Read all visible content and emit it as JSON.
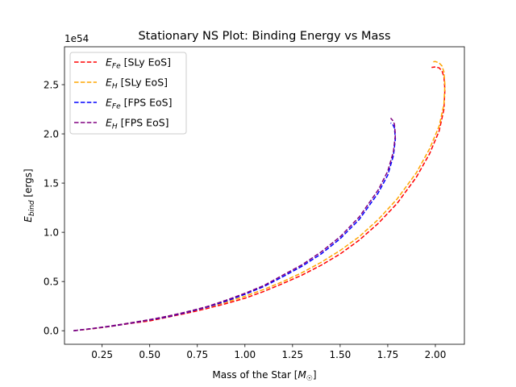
{
  "chart_data": {
    "type": "line",
    "title": "Stationary NS Plot: Binding Energy vs Mass",
    "xlabel": {
      "main": "Mass of the Star [",
      "symbol": "M",
      "sub": "☉",
      "end": "]"
    },
    "ylabel": {
      "sym": "E",
      "sub": "bind",
      "unit": " [ergs]"
    },
    "y_offset_text": "1e54",
    "xlim": [
      0.0525,
      2.1525
    ],
    "ylim": [
      -0.1375,
      2.885
    ],
    "x_ticks": [
      0.25,
      0.5,
      0.75,
      1.0,
      1.25,
      1.5,
      1.75,
      2.0
    ],
    "x_tick_labels": [
      "0.25",
      "0.50",
      "0.75",
      "1.00",
      "1.25",
      "1.50",
      "1.75",
      "2.00"
    ],
    "y_ticks": [
      0.0,
      0.5,
      1.0,
      1.5,
      2.0,
      2.5
    ],
    "y_tick_labels": [
      "0.0",
      "0.5",
      "1.0",
      "1.5",
      "2.0",
      "2.5"
    ],
    "grid": false,
    "legend_position": "top-left",
    "series": [
      {
        "name": "E_Fe [SLy EoS]",
        "legend": {
          "sym": "E",
          "sub": "Fe",
          "text": " [SLy EoS]"
        },
        "color": "#ff0000",
        "dash": "dashed",
        "x": [
          0.1,
          0.2,
          0.3,
          0.4,
          0.5,
          0.6,
          0.7,
          0.8,
          0.9,
          1.0,
          1.1,
          1.2,
          1.3,
          1.4,
          1.5,
          1.6,
          1.7,
          1.8,
          1.9,
          1.97,
          2.02,
          2.045,
          2.05,
          2.045,
          2.035,
          2.02,
          2.0,
          1.98
        ],
        "y": [
          0.0,
          0.02,
          0.045,
          0.075,
          0.1,
          0.14,
          0.18,
          0.225,
          0.275,
          0.33,
          0.4,
          0.48,
          0.565,
          0.665,
          0.78,
          0.92,
          1.09,
          1.295,
          1.56,
          1.8,
          2.03,
          2.25,
          2.45,
          2.58,
          2.64,
          2.67,
          2.68,
          2.675
        ]
      },
      {
        "name": "E_H [SLy EoS]",
        "legend": {
          "sym": "E",
          "sub": "H",
          "text": " [SLy EoS]"
        },
        "color": "#ffa500",
        "dash": "dashed",
        "x": [
          0.1,
          0.2,
          0.3,
          0.4,
          0.5,
          0.6,
          0.7,
          0.8,
          0.9,
          1.0,
          1.1,
          1.2,
          1.3,
          1.4,
          1.5,
          1.6,
          1.7,
          1.8,
          1.9,
          1.97,
          2.02,
          2.045,
          2.05,
          2.045,
          2.035,
          2.02,
          2.0,
          1.98
        ],
        "y": [
          0.0,
          0.022,
          0.048,
          0.08,
          0.11,
          0.15,
          0.19,
          0.24,
          0.29,
          0.35,
          0.42,
          0.5,
          0.59,
          0.695,
          0.815,
          0.955,
          1.13,
          1.34,
          1.605,
          1.85,
          2.08,
          2.3,
          2.5,
          2.63,
          2.69,
          2.72,
          2.735,
          2.73
        ]
      },
      {
        "name": "E_Fe [FPS EoS]",
        "legend": {
          "sym": "E",
          "sub": "Fe",
          "text": " [FPS EoS]"
        },
        "color": "#0000ff",
        "dash": "dashed",
        "x": [
          0.1,
          0.2,
          0.3,
          0.4,
          0.5,
          0.6,
          0.7,
          0.8,
          0.9,
          1.0,
          1.1,
          1.2,
          1.3,
          1.4,
          1.5,
          1.6,
          1.7,
          1.75,
          1.78,
          1.79,
          1.785,
          1.775,
          1.765
        ],
        "y": [
          0.0,
          0.022,
          0.048,
          0.078,
          0.11,
          0.145,
          0.19,
          0.24,
          0.3,
          0.37,
          0.45,
          0.55,
          0.655,
          0.78,
          0.935,
          1.13,
          1.4,
          1.58,
          1.78,
          1.95,
          2.06,
          2.1,
          2.11
        ]
      },
      {
        "name": "E_H [FPS EoS]",
        "legend": {
          "sym": "E",
          "sub": "H",
          "text": " [FPS EoS]"
        },
        "color": "#800080",
        "dash": "dashed",
        "x": [
          0.1,
          0.2,
          0.3,
          0.4,
          0.5,
          0.6,
          0.7,
          0.8,
          0.9,
          1.0,
          1.1,
          1.2,
          1.3,
          1.4,
          1.5,
          1.6,
          1.7,
          1.75,
          1.78,
          1.79,
          1.785,
          1.775,
          1.765
        ],
        "y": [
          0.0,
          0.023,
          0.05,
          0.08,
          0.113,
          0.15,
          0.195,
          0.245,
          0.31,
          0.38,
          0.46,
          0.565,
          0.67,
          0.8,
          0.955,
          1.155,
          1.43,
          1.62,
          1.82,
          1.99,
          2.1,
          2.14,
          2.16
        ]
      }
    ]
  }
}
